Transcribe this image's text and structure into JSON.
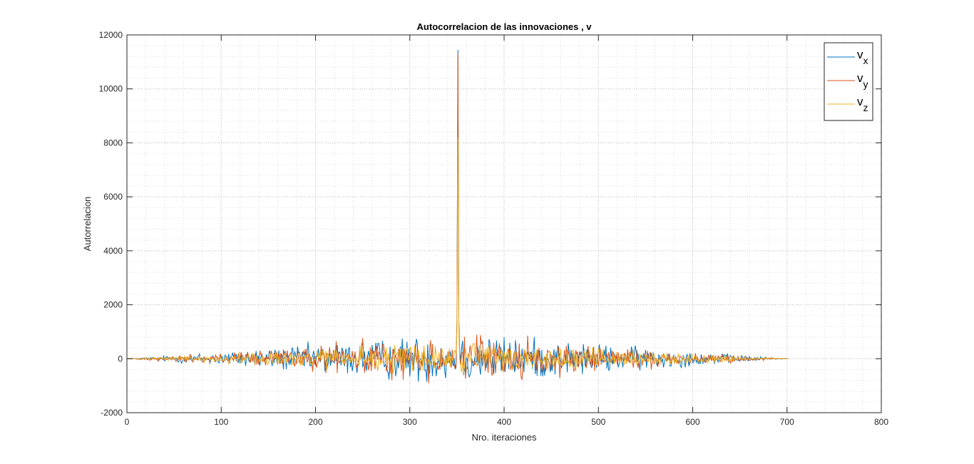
{
  "chart_data": {
    "type": "line",
    "title": "Autocorrelacion de las innovaciones , v",
    "xlabel": "Nro. iteraciones",
    "ylabel": "Autorrelacion",
    "xlim": [
      0,
      800
    ],
    "ylim": [
      -2000,
      12000
    ],
    "xticks": [
      "0",
      "100",
      "200",
      "300",
      "400",
      "500",
      "600",
      "700",
      "800"
    ],
    "yticks": [
      "-2000",
      "0",
      "2000",
      "4000",
      "6000",
      "8000",
      "10000",
      "12000"
    ],
    "grid": true,
    "minor_grid": true,
    "legend_position": "top-right",
    "series": [
      {
        "name": "v",
        "subscript": "x",
        "color": "#0072BD",
        "peak_x": 351,
        "peak_y": 11450,
        "x_range": [
          1,
          701
        ],
        "envelope": 1500
      },
      {
        "name": "v",
        "subscript": "y",
        "color": "#D95319",
        "peak_x": 351,
        "peak_y": 11300,
        "x_range": [
          1,
          701
        ],
        "envelope": 1300
      },
      {
        "name": "v",
        "subscript": "z",
        "color": "#EDB120",
        "peak_x": 351,
        "peak_y": 8200,
        "x_range": [
          1,
          701
        ],
        "envelope": 1000
      }
    ]
  }
}
